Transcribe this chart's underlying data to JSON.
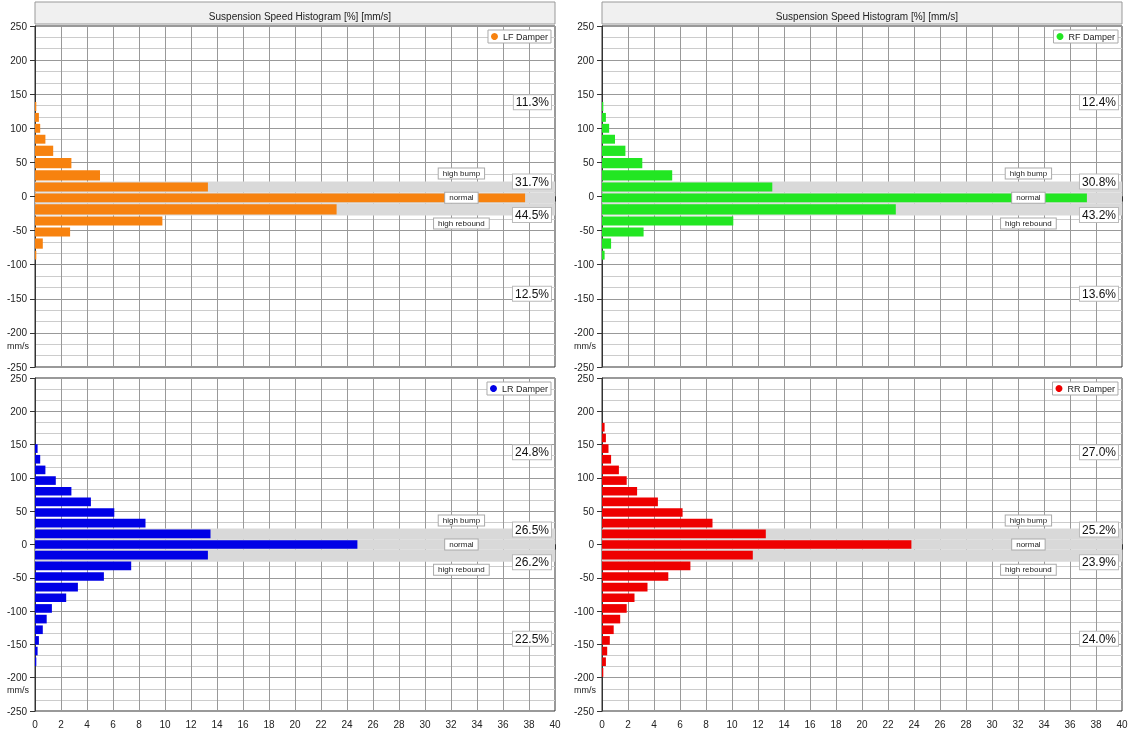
{
  "chart_data": [
    {
      "type": "histogram",
      "orientation": "horizontal",
      "title": "Suspension Speed Histogram [%] [mm/s]",
      "ylabel": "mm/s",
      "bins": [
        140,
        124,
        108,
        92,
        76,
        58,
        40,
        22,
        6,
        -10,
        -28,
        -44,
        -60,
        -78,
        -94
      ],
      "series": [
        {
          "name": "LF Damper",
          "color": "#f7820f",
          "values": [
            0.1,
            0.3,
            0.4,
            0.8,
            1.4,
            2.8,
            5.0,
            13.3,
            37.7,
            23.2,
            9.8,
            2.7,
            0.6,
            0.1
          ]
        }
      ],
      "bands": [
        {
          "axis": "y",
          "from": 6,
          "to": 22,
          "label": "high bump",
          "color": "#d9d9d9"
        },
        {
          "axis": "y",
          "from": -10,
          "to": 6,
          "label": "normal",
          "color": "#d9d9d9"
        },
        {
          "axis": "y",
          "from": -28,
          "to": -10,
          "label": "high rebound",
          "color": "#d9d9d9"
        }
      ],
      "annotations": [
        "11.3%",
        "31.7%",
        "44.5%",
        "12.5%"
      ],
      "xlim": [
        0,
        40
      ],
      "xticks": [
        0,
        2,
        4,
        6,
        8,
        10,
        12,
        14,
        16,
        18,
        20,
        22,
        24,
        26,
        28,
        30,
        32,
        34,
        36,
        38,
        40
      ],
      "ylim": [
        -250,
        250
      ],
      "yticks": [
        -250,
        -200,
        -150,
        -100,
        -50,
        0,
        50,
        100,
        150,
        200,
        250
      ],
      "tick_labels": "y",
      "grid": true,
      "legend": "top right"
    },
    {
      "type": "histogram",
      "orientation": "horizontal",
      "title": "Suspension Speed Histogram [%] [mm/s]",
      "ylabel": "mm/s",
      "bins": [
        140,
        124,
        108,
        92,
        76,
        58,
        40,
        22,
        6,
        -10,
        -28,
        -44,
        -60,
        -78,
        -94
      ],
      "series": [
        {
          "name": "RF Damper",
          "color": "#22e622",
          "values": [
            0.1,
            0.3,
            0.55,
            1.0,
            1.8,
            3.1,
            5.4,
            13.1,
            37.3,
            22.6,
            10.1,
            3.2,
            0.7,
            0.2
          ]
        }
      ],
      "bands": [
        {
          "axis": "y",
          "from": 6,
          "to": 22,
          "label": "high bump",
          "color": "#d9d9d9"
        },
        {
          "axis": "y",
          "from": -10,
          "to": 6,
          "label": "normal",
          "color": "#d9d9d9"
        },
        {
          "axis": "y",
          "from": -28,
          "to": -10,
          "label": "high rebound",
          "color": "#d9d9d9"
        }
      ],
      "annotations": [
        "12.4%",
        "30.8%",
        "43.2%",
        "13.6%"
      ],
      "xlim": [
        0,
        40
      ],
      "xticks": [
        0,
        2,
        4,
        6,
        8,
        10,
        12,
        14,
        16,
        18,
        20,
        22,
        24,
        26,
        28,
        30,
        32,
        34,
        36,
        38,
        40
      ],
      "ylim": [
        -250,
        250
      ],
      "yticks": [
        -250,
        -200,
        -150,
        -100,
        -50,
        0,
        50,
        100,
        150,
        200,
        250
      ],
      "tick_labels": "y",
      "grid": true,
      "legend": "top right"
    },
    {
      "type": "histogram",
      "orientation": "horizontal",
      "ylabel": "mm/s",
      "bins": [
        152,
        136,
        120,
        104,
        88,
        72,
        56,
        40,
        24,
        8,
        -8,
        -24,
        -40,
        -56,
        -72,
        -88,
        -104,
        -120,
        -136,
        -152,
        -168,
        -184
      ],
      "series": [
        {
          "name": "LR Damper",
          "color": "#0000e6",
          "values": [
            0.2,
            0.4,
            0.8,
            1.6,
            2.8,
            4.3,
            6.1,
            8.5,
            13.5,
            24.8,
            13.3,
            7.4,
            5.3,
            3.3,
            2.4,
            1.3,
            0.9,
            0.6,
            0.3,
            0.2,
            0.1
          ]
        }
      ],
      "bands": [
        {
          "axis": "y",
          "from": 8,
          "to": 24,
          "label": "high bump",
          "color": "#d9d9d9"
        },
        {
          "axis": "y",
          "from": -8,
          "to": 8,
          "label": "normal",
          "color": "#d9d9d9"
        },
        {
          "axis": "y",
          "from": -26,
          "to": -8,
          "label": "high rebound",
          "color": "#d9d9d9"
        }
      ],
      "annotations": [
        "24.8%",
        "26.5%",
        "26.2%",
        "22.5%"
      ],
      "xlim": [
        0,
        40
      ],
      "xticks": [
        0,
        2,
        4,
        6,
        8,
        10,
        12,
        14,
        16,
        18,
        20,
        22,
        24,
        26,
        28,
        30,
        32,
        34,
        36,
        38,
        40
      ],
      "ylim": [
        -250,
        250
      ],
      "yticks": [
        -250,
        -200,
        -150,
        -100,
        -50,
        0,
        50,
        100,
        150,
        200,
        250
      ],
      "grid": true,
      "legend": "top right"
    },
    {
      "type": "histogram",
      "orientation": "horizontal",
      "ylabel": "mm/s",
      "bins": [
        184,
        168,
        152,
        136,
        120,
        104,
        88,
        72,
        56,
        40,
        24,
        8,
        -8,
        -24,
        -40,
        -56,
        -72,
        -88,
        -104,
        -120,
        -136,
        -152,
        -168,
        -184,
        -200
      ],
      "series": [
        {
          "name": "RR Damper",
          "color": "#ee0000",
          "values": [
            0.2,
            0.3,
            0.5,
            0.7,
            1.3,
            1.9,
            2.7,
            4.3,
            6.2,
            8.5,
            12.6,
            23.8,
            11.6,
            6.8,
            5.1,
            3.5,
            2.5,
            1.9,
            1.4,
            0.9,
            0.6,
            0.4,
            0.3,
            0.1
          ]
        }
      ],
      "bands": [
        {
          "axis": "y",
          "from": 8,
          "to": 24,
          "label": "high bump",
          "color": "#d9d9d9"
        },
        {
          "axis": "y",
          "from": -8,
          "to": 8,
          "label": "normal",
          "color": "#d9d9d9"
        },
        {
          "axis": "y",
          "from": -26,
          "to": -8,
          "label": "high rebound",
          "color": "#d9d9d9"
        }
      ],
      "annotations": [
        "27.0%",
        "25.2%",
        "23.9%",
        "24.0%"
      ],
      "xlim": [
        0,
        40
      ],
      "xticks": [
        0,
        2,
        4,
        6,
        8,
        10,
        12,
        14,
        16,
        18,
        20,
        22,
        24,
        26,
        28,
        30,
        32,
        34,
        36,
        38,
        40
      ],
      "ylim": [
        -250,
        250
      ],
      "yticks": [
        -250,
        -200,
        -150,
        -100,
        -50,
        0,
        50,
        100,
        150,
        200,
        250
      ],
      "grid": true,
      "legend": "top right"
    }
  ]
}
